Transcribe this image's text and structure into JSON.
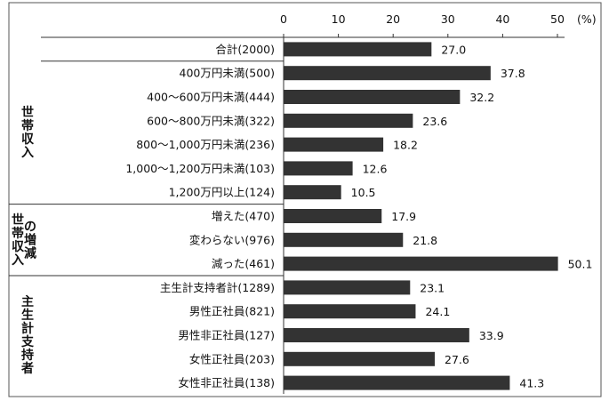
{
  "chart_data": {
    "type": "bar",
    "orientation": "horizontal",
    "unit_label": "(%)",
    "xlim": [
      0,
      50
    ],
    "xticks": [
      "0",
      "10",
      "20",
      "30",
      "40",
      "50"
    ],
    "grid": false,
    "categories": [
      "合計(2000)",
      "400万円未満(500)",
      "400～600万円未満(444)",
      "600～800万円未満(322)",
      "800～1,000万円未満(236)",
      "1,000～1,200万円未満(103)",
      "1,200万円以上(124)",
      "増えた(470)",
      "変わらない(976)",
      "減った(461)",
      "主生計支持者計(1289)",
      "男性正社員(821)",
      "男性非正社員(127)",
      "女性正社員(203)",
      "女性非正社員(138)"
    ],
    "values": [
      27.0,
      37.8,
      32.2,
      23.6,
      18.2,
      12.6,
      10.5,
      17.9,
      21.8,
      50.1,
      23.1,
      24.1,
      33.9,
      27.6,
      41.3
    ],
    "value_labels": [
      "27.0",
      "37.8",
      "32.2",
      "23.6",
      "18.2",
      "12.6",
      "10.5",
      "17.9",
      "21.8",
      "50.1",
      "23.1",
      "24.1",
      "33.9",
      "27.6",
      "41.3"
    ],
    "groups": [
      {
        "label": "世帯収入",
        "lines": [
          "世帯収入"
        ],
        "start": 1,
        "end": 6
      },
      {
        "label": "世帯収入の増減",
        "lines": [
          "世帯収入",
          "の増減"
        ],
        "start": 7,
        "end": 9
      },
      {
        "label": "主生計支持者",
        "lines": [
          "主生計支持者"
        ],
        "start": 10,
        "end": 14
      }
    ]
  }
}
